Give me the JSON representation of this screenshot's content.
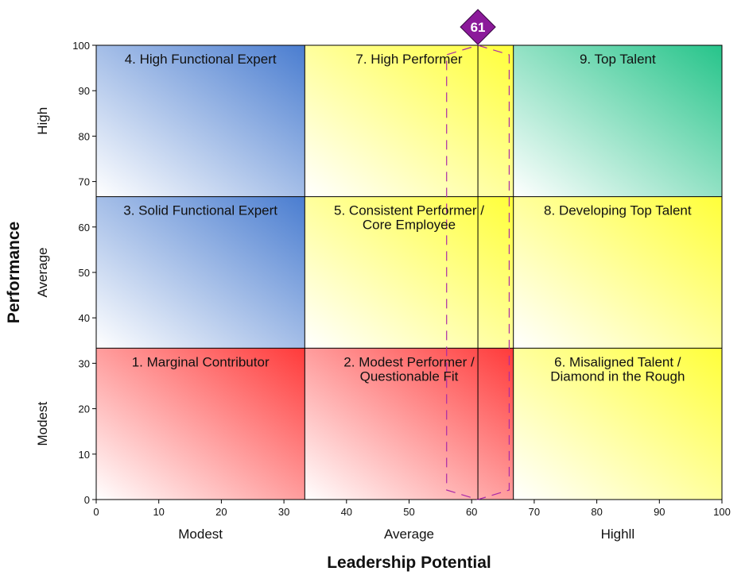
{
  "chart_data": {
    "type": "heatmap",
    "title": "",
    "xlabel": "Leadership Potential",
    "ylabel": "Performance",
    "xlim": [
      0,
      100
    ],
    "ylim": [
      0,
      100
    ],
    "x_ticks": [
      0,
      10,
      20,
      30,
      40,
      50,
      60,
      70,
      80,
      90,
      100
    ],
    "y_ticks": [
      0,
      10,
      20,
      30,
      40,
      50,
      60,
      70,
      80,
      90,
      100
    ],
    "x_bands": [
      {
        "label": "Modest",
        "range": [
          0,
          33.33
        ]
      },
      {
        "label": "Average",
        "range": [
          33.33,
          66.67
        ]
      },
      {
        "label": "Highll",
        "range": [
          66.67,
          100
        ]
      }
    ],
    "y_bands": [
      {
        "label": "Modest",
        "range": [
          0,
          33.33
        ]
      },
      {
        "label": "Average",
        "range": [
          33.33,
          66.67
        ]
      },
      {
        "label": "High",
        "range": [
          66.67,
          100
        ]
      }
    ],
    "cells": [
      {
        "col": 0,
        "row": 2,
        "lines": [
          "4. High Functional Expert"
        ],
        "color": "#4a7dd0"
      },
      {
        "col": 1,
        "row": 2,
        "lines": [
          "7. High Performer"
        ],
        "color": "#ffff3a"
      },
      {
        "col": 2,
        "row": 2,
        "lines": [
          "9. Top Talent"
        ],
        "color": "#26c48a"
      },
      {
        "col": 0,
        "row": 1,
        "lines": [
          "3. Solid Functional Expert"
        ],
        "color": "#4a7dd0"
      },
      {
        "col": 1,
        "row": 1,
        "lines": [
          "5. Consistent Performer /",
          "Core Employee"
        ],
        "color": "#ffff3a"
      },
      {
        "col": 2,
        "row": 1,
        "lines": [
          "8. Developing Top Talent"
        ],
        "color": "#ffff3a"
      },
      {
        "col": 0,
        "row": 0,
        "lines": [
          "1. Marginal Contributor"
        ],
        "color": "#ff3a3a"
      },
      {
        "col": 1,
        "row": 0,
        "lines": [
          "2. Modest Performer /",
          "Questionable Fit"
        ],
        "color": "#ff3a3a"
      },
      {
        "col": 2,
        "row": 0,
        "lines": [
          "6. Misaligned Talent /",
          "Diamond in the Rough"
        ],
        "color": "#ffff3a"
      }
    ],
    "marker": {
      "label": "61",
      "x": 61,
      "color": "#8b1a9a",
      "range_x": [
        56,
        66
      ],
      "range_y": [
        0,
        100
      ],
      "range_color": "#aa2aa8"
    }
  }
}
